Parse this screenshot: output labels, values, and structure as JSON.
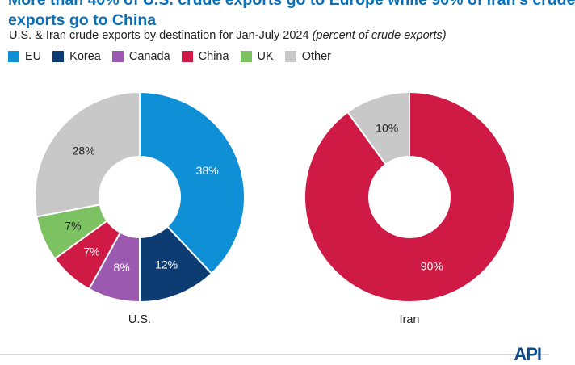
{
  "header": {
    "title_line1": "More than 40% of U.S. crude exports go to Europe while 90% of Iran's crude",
    "title_line2": "exports go to China",
    "subtitle": "U.S. & Iran crude exports by destination for Jan-July 2024",
    "subtitle_note": "(percent of crude exports)"
  },
  "legend": [
    {
      "label": "EU",
      "color": "#0f8fd6"
    },
    {
      "label": "Korea",
      "color": "#0d3c73"
    },
    {
      "label": "Canada",
      "color": "#9b59b0"
    },
    {
      "label": "China",
      "color": "#cf1a45"
    },
    {
      "label": "UK",
      "color": "#7cc263"
    },
    {
      "label": "Other",
      "color": "#c8c8c8"
    }
  ],
  "chart_data": [
    {
      "type": "pie",
      "donut": true,
      "label": "U.S.",
      "slices": [
        {
          "name": "EU",
          "value": 38,
          "label": "38%",
          "color": "#0f8fd6",
          "label_color": "#ffffff"
        },
        {
          "name": "Korea",
          "value": 12,
          "label": "12%",
          "color": "#0d3c73",
          "label_color": "#ffffff"
        },
        {
          "name": "Canada",
          "value": 8,
          "label": "8%",
          "color": "#9b59b0",
          "label_color": "#ffffff"
        },
        {
          "name": "China",
          "value": 7,
          "label": "7%",
          "color": "#cf1a45",
          "label_color": "#ffffff"
        },
        {
          "name": "UK",
          "value": 7,
          "label": "7%",
          "color": "#7cc263",
          "label_color": "#222222"
        },
        {
          "name": "Other",
          "value": 28,
          "label": "28%",
          "color": "#c8c8c8",
          "label_color": "#222222"
        }
      ]
    },
    {
      "type": "pie",
      "donut": true,
      "label": "Iran",
      "slices": [
        {
          "name": "China",
          "value": 90,
          "label": "90%",
          "color": "#cf1a45",
          "label_color": "#ffffff"
        },
        {
          "name": "Other",
          "value": 10,
          "label": "10%",
          "color": "#c8c8c8",
          "label_color": "#222222"
        }
      ]
    }
  ],
  "logo": {
    "text": "API"
  }
}
